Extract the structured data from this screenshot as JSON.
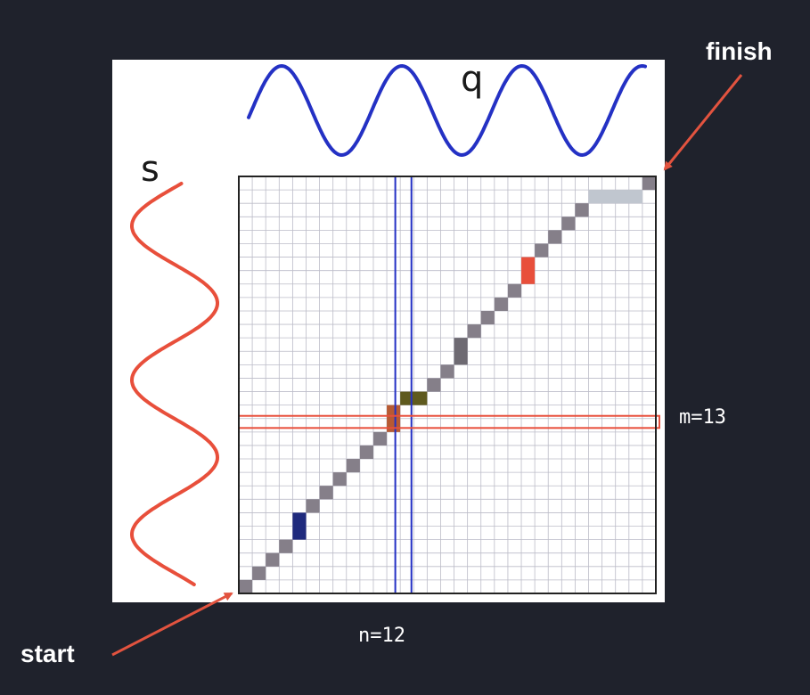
{
  "labels": {
    "start": "start",
    "finish": "finish",
    "query": "q",
    "subject": "s",
    "n_label": "n=12",
    "m_label": "m=13"
  },
  "grid": {
    "columns": 31,
    "rows": 31
  },
  "highlight": {
    "column": 12,
    "row": 13
  },
  "colors": {
    "background": "#1f222c",
    "query_wave": "#2431c4",
    "subject_wave": "#e84f3b",
    "arrow": "#e2533f",
    "path_cell": "#857f89",
    "column_box": "#2431c4",
    "row_box": "#e84f3b"
  },
  "path_segments": [
    {
      "col": 0,
      "row": 0,
      "w": 1,
      "h": 1,
      "color": "#857f89"
    },
    {
      "col": 1,
      "row": 1,
      "w": 1,
      "h": 1,
      "color": "#857f89"
    },
    {
      "col": 2,
      "row": 2,
      "w": 1,
      "h": 1,
      "color": "#857f89"
    },
    {
      "col": 3,
      "row": 3,
      "w": 1,
      "h": 1,
      "color": "#857f89"
    },
    {
      "col": 4,
      "row": 4,
      "w": 1,
      "h": 2,
      "color": "#1f2a7d"
    },
    {
      "col": 5,
      "row": 6,
      "w": 1,
      "h": 1,
      "color": "#857f89"
    },
    {
      "col": 6,
      "row": 7,
      "w": 1,
      "h": 1,
      "color": "#857f89"
    },
    {
      "col": 7,
      "row": 8,
      "w": 1,
      "h": 1,
      "color": "#857f89"
    },
    {
      "col": 8,
      "row": 9,
      "w": 1,
      "h": 1,
      "color": "#857f89"
    },
    {
      "col": 9,
      "row": 10,
      "w": 1,
      "h": 1,
      "color": "#857f89"
    },
    {
      "col": 10,
      "row": 11,
      "w": 1,
      "h": 1,
      "color": "#857f89"
    },
    {
      "col": 11,
      "row": 12,
      "w": 1,
      "h": 2,
      "color": "#b75a33"
    },
    {
      "col": 12,
      "row": 14,
      "w": 2,
      "h": 1,
      "color": "#5f5a1e"
    },
    {
      "col": 14,
      "row": 15,
      "w": 1,
      "h": 1,
      "color": "#857f89"
    },
    {
      "col": 15,
      "row": 16,
      "w": 1,
      "h": 1,
      "color": "#857f89"
    },
    {
      "col": 16,
      "row": 17,
      "w": 1,
      "h": 2,
      "color": "#6e6a72"
    },
    {
      "col": 17,
      "row": 19,
      "w": 1,
      "h": 1,
      "color": "#857f89"
    },
    {
      "col": 18,
      "row": 20,
      "w": 1,
      "h": 1,
      "color": "#857f89"
    },
    {
      "col": 19,
      "row": 21,
      "w": 1,
      "h": 1,
      "color": "#857f89"
    },
    {
      "col": 20,
      "row": 22,
      "w": 1,
      "h": 1,
      "color": "#857f89"
    },
    {
      "col": 21,
      "row": 23,
      "w": 1,
      "h": 2,
      "color": "#e84f3b"
    },
    {
      "col": 22,
      "row": 25,
      "w": 1,
      "h": 1,
      "color": "#857f89"
    },
    {
      "col": 23,
      "row": 26,
      "w": 1,
      "h": 1,
      "color": "#857f89"
    },
    {
      "col": 24,
      "row": 27,
      "w": 1,
      "h": 1,
      "color": "#857f89"
    },
    {
      "col": 25,
      "row": 28,
      "w": 1,
      "h": 1,
      "color": "#857f89"
    },
    {
      "col": 26,
      "row": 29,
      "w": 4,
      "h": 1,
      "color": "#c0c6cf"
    },
    {
      "col": 30,
      "row": 30,
      "w": 1,
      "h": 1,
      "color": "#857f89"
    }
  ]
}
